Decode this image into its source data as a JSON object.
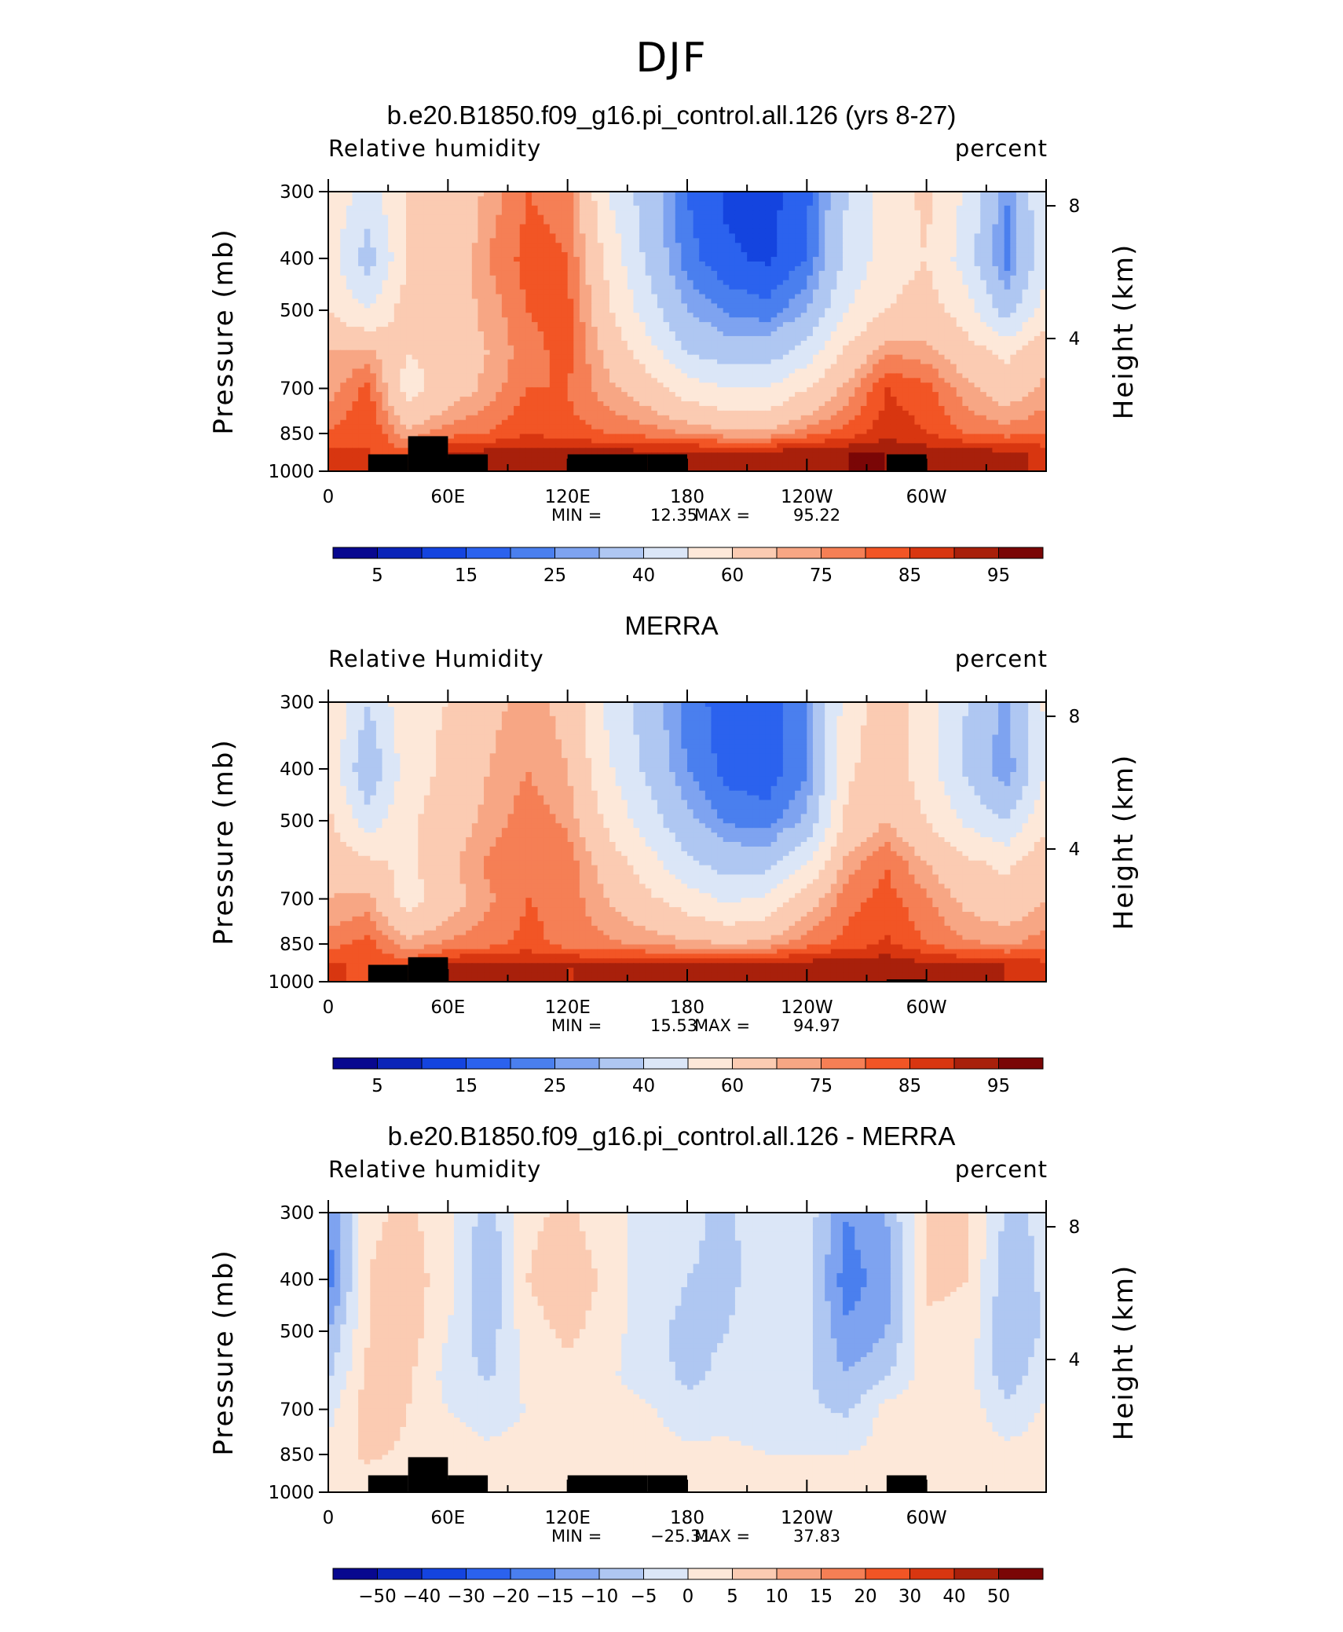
{
  "page_title": "DJF",
  "colors": {
    "abs_palette": [
      "#08088f",
      "#0b24b8",
      "#1444df",
      "#2b62ee",
      "#4a7fee",
      "#7ea3f0",
      "#afc7f2",
      "#dbe6f7",
      "#fde8d9",
      "#fbcbb2",
      "#f7a684",
      "#f57f55",
      "#f25525",
      "#d83610",
      "#a8200b",
      "#7a0606"
    ],
    "diff_palette": [
      "#08088f",
      "#0b24b8",
      "#1444df",
      "#2b62ee",
      "#4a7fee",
      "#7ea3f0",
      "#afc7f2",
      "#dbe6f7",
      "#fde8d9",
      "#fbcbb2",
      "#f7a684",
      "#f57f55",
      "#f25525",
      "#d83610",
      "#a8200b",
      "#7a0606"
    ],
    "topography": "#000000"
  },
  "chart_data": [
    {
      "type": "heatmap",
      "title": "b.e20.B1850.f09_g16.pi_control.all.126 (yrs 8-27)",
      "variable_label": "Relative humidity",
      "units_label": "percent",
      "ylabel": "Pressure (mb)",
      "ylabel_right": "Height (km)",
      "x_ticks": [
        "0",
        "60E",
        "120E",
        "180",
        "120W",
        "60W"
      ],
      "y_ticks": [
        "300",
        "400",
        "500",
        "700",
        "850",
        "1000"
      ],
      "y_right_ticks": [
        "8",
        "4"
      ],
      "stats": {
        "min_label": "MIN =",
        "min": "12.35",
        "max_label": "MAX =",
        "max": "95.22"
      },
      "colorbar_labels": [
        "5",
        "15",
        "25",
        "40",
        "60",
        "75",
        "85",
        "95"
      ],
      "colorbar_levels": [
        0,
        5,
        10,
        15,
        20,
        25,
        30,
        40,
        50,
        60,
        70,
        75,
        80,
        85,
        90,
        95,
        100
      ],
      "grid": {
        "pressure_levels": [
          300,
          400,
          500,
          600,
          700,
          850,
          925,
          1000
        ],
        "longitudes": [
          0,
          20,
          40,
          60,
          80,
          100,
          120,
          140,
          160,
          180,
          200,
          220,
          240,
          260,
          280,
          300,
          320,
          340,
          360
        ],
        "rh": [
          [
            58,
            45,
            62,
            60,
            72,
            80,
            78,
            50,
            35,
            20,
            14,
            13,
            18,
            40,
            55,
            62,
            48,
            25,
            50
          ],
          [
            55,
            35,
            60,
            62,
            75,
            82,
            80,
            58,
            38,
            22,
            16,
            14,
            20,
            42,
            55,
            60,
            45,
            22,
            48
          ],
          [
            60,
            50,
            65,
            65,
            72,
            80,
            82,
            62,
            45,
            30,
            24,
            22,
            30,
            50,
            60,
            65,
            55,
            35,
            55
          ],
          [
            70,
            72,
            60,
            65,
            70,
            78,
            82,
            68,
            55,
            40,
            35,
            35,
            45,
            62,
            75,
            72,
            65,
            58,
            68
          ],
          [
            72,
            82,
            55,
            65,
            72,
            80,
            80,
            72,
            65,
            55,
            50,
            50,
            60,
            72,
            85,
            82,
            72,
            65,
            72
          ],
          [
            80,
            85,
            72,
            78,
            80,
            85,
            82,
            80,
            78,
            75,
            72,
            72,
            78,
            82,
            88,
            85,
            80,
            78,
            80
          ],
          [
            88,
            85,
            82,
            90,
            92,
            92,
            92,
            92,
            92,
            92,
            92,
            92,
            94,
            95,
            95,
            93,
            92,
            92,
            88
          ],
          [
            88,
            85,
            82,
            90,
            92,
            92,
            92,
            92,
            92,
            92,
            92,
            92,
            94,
            95,
            95,
            93,
            92,
            92,
            88
          ]
        ],
        "topography_surface_mb": [
          1000,
          930,
          860,
          930,
          1000,
          1000,
          930,
          930,
          930,
          1000,
          1000,
          1000,
          1000,
          1000,
          930,
          1000,
          1000,
          1000,
          1000
        ]
      }
    },
    {
      "type": "heatmap",
      "title": "MERRA",
      "variable_label": "Relative Humidity",
      "units_label": "percent",
      "ylabel": "Pressure (mb)",
      "ylabel_right": "Height (km)",
      "x_ticks": [
        "0",
        "60E",
        "120E",
        "180",
        "120W",
        "60W"
      ],
      "y_ticks": [
        "300",
        "400",
        "500",
        "700",
        "850",
        "1000"
      ],
      "y_right_ticks": [
        "8",
        "4"
      ],
      "stats": {
        "min_label": "MIN =",
        "min": "15.53",
        "max_label": "MAX =",
        "max": "94.97"
      },
      "colorbar_labels": [
        "5",
        "15",
        "25",
        "40",
        "60",
        "75",
        "85",
        "95"
      ],
      "colorbar_levels": [
        0,
        5,
        10,
        15,
        20,
        25,
        30,
        40,
        50,
        60,
        70,
        75,
        80,
        85,
        90,
        95,
        100
      ],
      "grid": {
        "pressure_levels": [
          300,
          400,
          500,
          600,
          700,
          850,
          925,
          1000
        ],
        "longitudes": [
          0,
          20,
          40,
          60,
          80,
          100,
          120,
          140,
          160,
          180,
          200,
          220,
          240,
          260,
          280,
          300,
          320,
          340,
          360
        ],
        "rh": [
          [
            60,
            40,
            58,
            60,
            68,
            72,
            68,
            48,
            35,
            22,
            18,
            18,
            24,
            55,
            65,
            55,
            40,
            28,
            52
          ],
          [
            58,
            30,
            56,
            62,
            70,
            75,
            70,
            52,
            38,
            25,
            18,
            17,
            24,
            58,
            66,
            55,
            38,
            25,
            50
          ],
          [
            62,
            45,
            58,
            65,
            72,
            78,
            74,
            58,
            45,
            32,
            24,
            22,
            32,
            62,
            70,
            60,
            48,
            40,
            58
          ],
          [
            68,
            62,
            58,
            68,
            76,
            80,
            78,
            66,
            55,
            42,
            36,
            36,
            50,
            72,
            80,
            70,
            62,
            58,
            68
          ],
          [
            70,
            72,
            55,
            66,
            74,
            80,
            78,
            70,
            62,
            55,
            48,
            52,
            66,
            78,
            82,
            76,
            68,
            64,
            70
          ],
          [
            78,
            82,
            72,
            76,
            78,
            82,
            78,
            76,
            74,
            72,
            70,
            72,
            78,
            82,
            86,
            80,
            76,
            74,
            78
          ],
          [
            86,
            84,
            82,
            90,
            91,
            91,
            90,
            90,
            90,
            90,
            90,
            90,
            92,
            93,
            93,
            91,
            90,
            90,
            86
          ],
          [
            86,
            84,
            82,
            90,
            91,
            91,
            90,
            90,
            90,
            90,
            90,
            90,
            92,
            93,
            93,
            91,
            90,
            90,
            86
          ]
        ],
        "topography_surface_mb": [
          1000,
          930,
          900,
          1000,
          1000,
          1000,
          1000,
          1000,
          1000,
          1000,
          1000,
          1000,
          1000,
          1000,
          990,
          1000,
          1000,
          1000,
          1000
        ]
      }
    },
    {
      "type": "heatmap",
      "title": "b.e20.B1850.f09_g16.pi_control.all.126 - MERRA",
      "variable_label": "Relative humidity",
      "units_label": "percent",
      "ylabel": "Pressure (mb)",
      "ylabel_right": "Height (km)",
      "x_ticks": [
        "0",
        "60E",
        "120E",
        "180",
        "120W",
        "60W"
      ],
      "y_ticks": [
        "300",
        "400",
        "500",
        "700",
        "850",
        "1000"
      ],
      "y_right_ticks": [
        "8",
        "4"
      ],
      "stats": {
        "min_label": "MIN =",
        "min": "−25.31",
        "max_label": "MAX =",
        "max": "37.83"
      },
      "colorbar_labels": [
        "−50",
        "−40",
        "−30",
        "−20",
        "−15",
        "−10",
        "−5",
        "0",
        "5",
        "10",
        "15",
        "20",
        "30",
        "40",
        "50"
      ],
      "colorbar_levels": [
        -60,
        -50,
        -40,
        -30,
        -20,
        -15,
        -10,
        -5,
        0,
        5,
        10,
        15,
        20,
        30,
        40,
        50,
        60
      ],
      "grid": {
        "pressure_levels": [
          300,
          400,
          500,
          600,
          700,
          850,
          925,
          1000
        ],
        "longitudes": [
          0,
          20,
          40,
          60,
          80,
          100,
          120,
          140,
          160,
          180,
          200,
          220,
          240,
          260,
          280,
          300,
          320,
          340,
          360
        ],
        "rh": [
          [
            -15,
            4,
            6,
            2,
            -8,
            4,
            6,
            2,
            -2,
            -4,
            -6,
            -2,
            -2,
            -15,
            -10,
            6,
            6,
            -6,
            -4
          ],
          [
            -18,
            5,
            8,
            2,
            -10,
            5,
            8,
            4,
            -3,
            -5,
            -6,
            -3,
            -3,
            -18,
            -12,
            6,
            5,
            -8,
            -4
          ],
          [
            -10,
            5,
            8,
            0,
            -8,
            3,
            6,
            3,
            -4,
            -6,
            -5,
            -2,
            -3,
            -14,
            -10,
            4,
            4,
            -10,
            -4
          ],
          [
            -6,
            6,
            6,
            -2,
            -6,
            2,
            4,
            1,
            -3,
            -6,
            -4,
            -2,
            -4,
            -10,
            -6,
            2,
            2,
            -8,
            -2
          ],
          [
            -2,
            8,
            5,
            0,
            -2,
            0,
            2,
            2,
            1,
            -4,
            -3,
            -4,
            -4,
            -6,
            2,
            4,
            3,
            -4,
            1
          ],
          [
            2,
            6,
            4,
            2,
            1,
            2,
            2,
            3,
            3,
            2,
            2,
            0,
            0,
            0,
            2,
            4,
            3,
            2,
            2
          ],
          [
            2,
            4,
            0,
            2,
            1,
            1,
            2,
            2,
            2,
            2,
            2,
            2,
            2,
            2,
            1,
            2,
            2,
            2,
            2
          ],
          [
            2,
            4,
            0,
            2,
            1,
            1,
            2,
            2,
            2,
            2,
            2,
            2,
            2,
            2,
            1,
            2,
            2,
            2,
            2
          ]
        ],
        "topography_surface_mb": [
          1000,
          930,
          860,
          930,
          1000,
          1000,
          930,
          930,
          930,
          1000,
          1000,
          1000,
          1000,
          1000,
          930,
          1000,
          1000,
          1000,
          1000
        ]
      }
    }
  ]
}
